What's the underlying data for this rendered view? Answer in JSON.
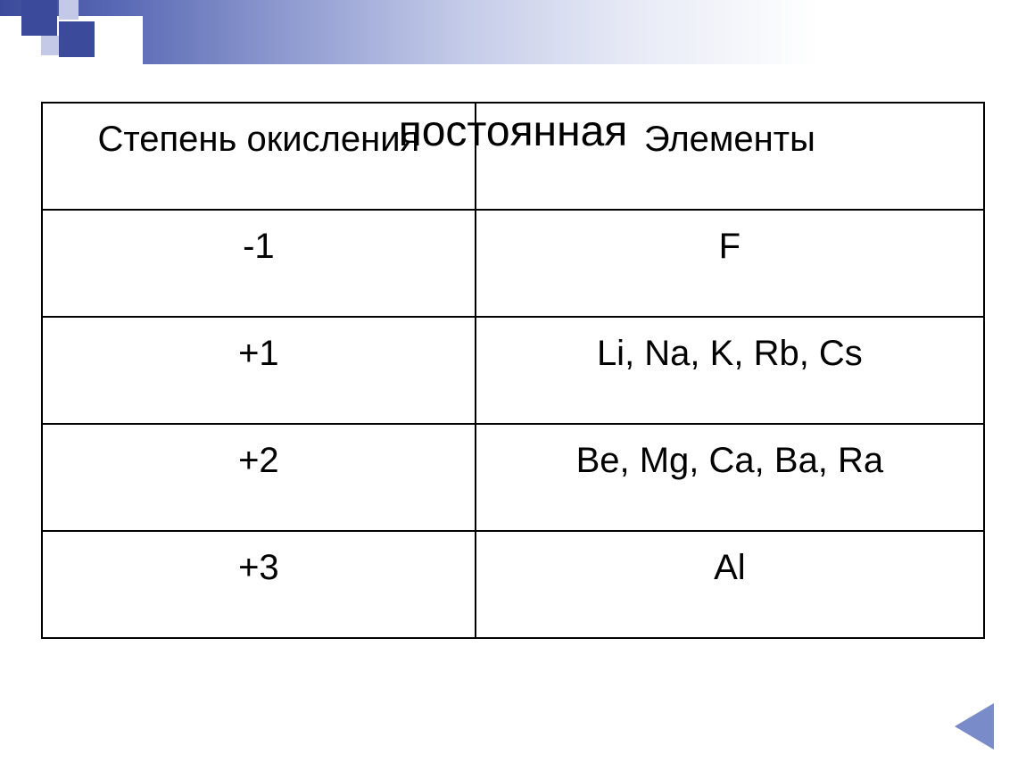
{
  "slide": {
    "overlay_title": "постоянная",
    "table": {
      "columns": [
        "Степень окисления",
        "Элементы"
      ],
      "rows": [
        [
          "-1",
          "F"
        ],
        [
          "+1",
          "Li, Na, K, Rb, Cs"
        ],
        [
          "+2",
          "Be, Mg, Ca, Ba, Ra"
        ],
        [
          "+3",
          "Al"
        ]
      ],
      "border_color": "#000000",
      "header_fontsize": 40,
      "cell_fontsize": 40,
      "text_color": "#000000",
      "col_widths_pct": [
        46,
        54
      ]
    },
    "decor": {
      "gradient_colors": [
        "#3b4a9a",
        "#5a6ab5",
        "#8f9bd0",
        "#c4cbe8",
        "#e8ebf6",
        "#ffffff"
      ],
      "square_dark": "#3b4a9a",
      "square_light": "#c3c9e6"
    },
    "nav": {
      "back_arrow_color": "#7a8bc9"
    }
  }
}
